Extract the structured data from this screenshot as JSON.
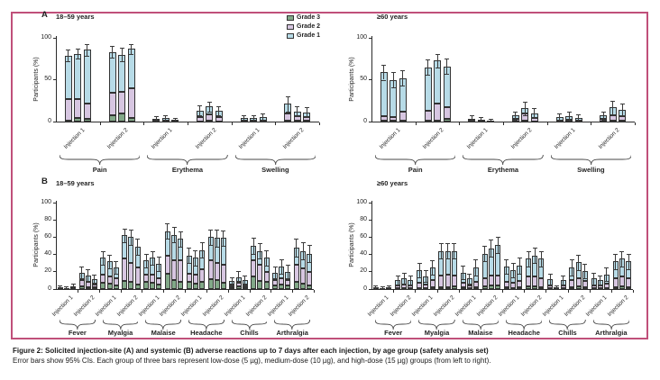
{
  "figure": {
    "caption_title": "Figure 2: Solicited injection-site (A) and systemic (B) adverse reactions up to 7 days after each injection, by age group (safety analysis set)",
    "caption_note": "Error bars show 95% CIs. Each group of three bars represent low-dose (5 µg), medium-dose (10 µg), and high-dose (15 µg) groups (from left to right).",
    "frame_color": "#c0507a",
    "dose_groups": [
      "low-dose (5 µg)",
      "medium-dose (10 µg)",
      "high-dose (15 µg)"
    ]
  },
  "legend": {
    "items": [
      {
        "key": "grade3",
        "label": "Grade 3",
        "color": "#82a988"
      },
      {
        "key": "grade2",
        "label": "Grade 2",
        "color": "#d7c6e1"
      },
      {
        "key": "grade1",
        "label": "Grade 1",
        "color": "#b7dbe7"
      }
    ]
  },
  "chart_data": [
    {
      "id": "injection-site-18-59",
      "panel_letter": "A",
      "age_group": "18–59 years",
      "type": "bar",
      "stacked": true,
      "ylabel": "Participants (%)",
      "ylim": [
        0,
        100
      ],
      "yticks": [
        0,
        50,
        100
      ],
      "grid": false,
      "bar_format": [
        "grade3_pct",
        "grade2_pct",
        "grade1_pct",
        "ci95_halfwidth_pct"
      ],
      "groups": [
        {
          "category": "Pain",
          "injection": "Injection 1",
          "bars": [
            [
              1,
              26,
              52,
              7
            ],
            [
              4,
              23,
              54,
              6
            ],
            [
              3,
              19,
              64,
              7
            ]
          ]
        },
        {
          "category": "Pain",
          "injection": "Injection 2",
          "bars": [
            [
              8,
              26,
              49,
              7
            ],
            [
              10,
              25,
              45,
              8
            ],
            [
              4,
              36,
              47,
              6
            ]
          ]
        },
        {
          "category": "Erythema",
          "injection": "Injection 1",
          "bars": [
            [
              0,
              1,
              2,
              3
            ],
            [
              0,
              1,
              3,
              4
            ],
            [
              0,
              1,
              1,
              2
            ]
          ]
        },
        {
          "category": "Erythema",
          "injection": "Injection 2",
          "bars": [
            [
              0,
              5,
              8,
              6
            ],
            [
              1,
              8,
              9,
              6
            ],
            [
              0,
              5,
              8,
              5
            ]
          ]
        },
        {
          "category": "Swelling",
          "injection": "Injection 1",
          "bars": [
            [
              0,
              1,
              3,
              4
            ],
            [
              0,
              1,
              3,
              4
            ],
            [
              0,
              1,
              4,
              5
            ]
          ]
        },
        {
          "category": "Swelling",
          "injection": "Injection 2",
          "bars": [
            [
              1,
              9,
              11,
              9
            ],
            [
              1,
              5,
              6,
              6
            ],
            [
              1,
              4,
              6,
              6
            ]
          ]
        }
      ]
    },
    {
      "id": "injection-site-60plus",
      "panel_letter": "",
      "age_group": "≥60 years",
      "type": "bar",
      "stacked": true,
      "ylabel": "Participants (%)",
      "ylim": [
        0,
        100
      ],
      "yticks": [
        0,
        50,
        100
      ],
      "grid": false,
      "bar_format": [
        "grade3_pct",
        "grade2_pct",
        "grade1_pct",
        "ci95_halfwidth_pct"
      ],
      "groups": [
        {
          "category": "Pain",
          "injection": "Injection 1",
          "bars": [
            [
              1,
              5,
              53,
              9
            ],
            [
              1,
              4,
              45,
              9
            ],
            [
              1,
              11,
              40,
              9
            ]
          ]
        },
        {
          "category": "Pain",
          "injection": "Injection 2",
          "bars": [
            [
              1,
              12,
              52,
              9
            ],
            [
              1,
              21,
              51,
              8
            ],
            [
              3,
              14,
              49,
              9
            ]
          ]
        },
        {
          "category": "Erythema",
          "injection": "Injection 1",
          "bars": [
            [
              0,
              1,
              2,
              4
            ],
            [
              0,
              1,
              1,
              3
            ],
            [
              0,
              0,
              1,
              2
            ]
          ]
        },
        {
          "category": "Erythema",
          "injection": "Injection 2",
          "bars": [
            [
              0,
              3,
              4,
              5
            ],
            [
              1,
              9,
              6,
              8
            ],
            [
              0,
              4,
              6,
              6
            ]
          ]
        },
        {
          "category": "Swelling",
          "injection": "Injection 1",
          "bars": [
            [
              0,
              1,
              4,
              5
            ],
            [
              0,
              2,
              4,
              6
            ],
            [
              0,
              1,
              3,
              5
            ]
          ]
        },
        {
          "category": "Swelling",
          "injection": "Injection 2",
          "bars": [
            [
              0,
              3,
              4,
              5
            ],
            [
              1,
              7,
              9,
              8
            ],
            [
              1,
              5,
              8,
              7
            ]
          ]
        }
      ]
    },
    {
      "id": "systemic-18-59",
      "panel_letter": "B",
      "age_group": "18–59 years",
      "type": "bar",
      "stacked": true,
      "ylabel": "Participants (%)",
      "ylim": [
        0,
        100
      ],
      "yticks": [
        0,
        20,
        40,
        60,
        80,
        100
      ],
      "grid": false,
      "bar_format": [
        "grade3_pct",
        "grade2_pct",
        "grade1_pct",
        "ci95_halfwidth_pct"
      ],
      "groups": [
        {
          "category": "Fever",
          "injection": "Injection 1",
          "bars": [
            [
              0,
              1,
              1,
              2
            ],
            [
              0,
              0,
              1,
              2
            ],
            [
              0,
              1,
              2,
              3
            ]
          ]
        },
        {
          "category": "Fever",
          "injection": "Injection 2",
          "bars": [
            [
              3,
              7,
              9,
              7
            ],
            [
              2,
              6,
              8,
              7
            ],
            [
              2,
              4,
              5,
              6
            ]
          ]
        },
        {
          "category": "Myalgia",
          "injection": "Injection 1",
          "bars": [
            [
              7,
              10,
              19,
              8
            ],
            [
              6,
              9,
              17,
              8
            ],
            [
              4,
              8,
              13,
              7
            ]
          ]
        },
        {
          "category": "Myalgia",
          "injection": "Injection 2",
          "bars": [
            [
              9,
              26,
              27,
              8
            ],
            [
              8,
              22,
              30,
              9
            ],
            [
              5,
              20,
              24,
              9
            ]
          ]
        },
        {
          "category": "Malaise",
          "injection": "Injection 1",
          "bars": [
            [
              8,
              9,
              16,
              8
            ],
            [
              7,
              10,
              19,
              8
            ],
            [
              5,
              8,
              16,
              8
            ]
          ]
        },
        {
          "category": "Malaise",
          "injection": "Injection 2",
          "bars": [
            [
              18,
              21,
              28,
              9
            ],
            [
              10,
              23,
              30,
              9
            ],
            [
              8,
              25,
              25,
              9
            ]
          ]
        },
        {
          "category": "Headache",
          "injection": "Injection 1",
          "bars": [
            [
              8,
              10,
              21,
              9
            ],
            [
              6,
              11,
              19,
              9
            ],
            [
              8,
              15,
              22,
              9
            ]
          ]
        },
        {
          "category": "Headache",
          "injection": "Injection 2",
          "bars": [
            [
              11,
              22,
              27,
              9
            ],
            [
              10,
              20,
              29,
              10
            ],
            [
              7,
              21,
              31,
              9
            ]
          ]
        },
        {
          "category": "Chills",
          "injection": "Injection 1",
          "bars": [
            [
              2,
              3,
              4,
              5
            ],
            [
              3,
              5,
              6,
              7
            ],
            [
              2,
              3,
              5,
              6
            ]
          ]
        },
        {
          "category": "Chills",
          "injection": "Injection 2",
          "bars": [
            [
              15,
              18,
              17,
              9
            ],
            [
              9,
              19,
              16,
              9
            ],
            [
              8,
              12,
              16,
              9
            ]
          ]
        },
        {
          "category": "Arthralgia",
          "injection": "Injection 1",
          "bars": [
            [
              4,
              6,
              9,
              7
            ],
            [
              5,
              8,
              13,
              8
            ],
            [
              4,
              6,
              10,
              8
            ]
          ]
        },
        {
          "category": "Arthralgia",
          "injection": "Injection 2",
          "bars": [
            [
              8,
              20,
              20,
              10
            ],
            [
              6,
              18,
              20,
              10
            ],
            [
              4,
              16,
              21,
              10
            ]
          ]
        }
      ]
    },
    {
      "id": "systemic-60plus",
      "panel_letter": "",
      "age_group": "≥60 years",
      "type": "bar",
      "stacked": true,
      "ylabel": "Participants (%)",
      "ylim": [
        0,
        100
      ],
      "yticks": [
        0,
        20,
        40,
        60,
        80,
        100
      ],
      "grid": false,
      "bar_format": [
        "grade3_pct",
        "grade2_pct",
        "grade1_pct",
        "ci95_halfwidth_pct"
      ],
      "groups": [
        {
          "category": "Fever",
          "injection": "Injection 1",
          "bars": [
            [
              0,
              1,
              1,
              2
            ],
            [
              0,
              0,
              1,
              2
            ],
            [
              0,
              1,
              1,
              2
            ]
          ]
        },
        {
          "category": "Fever",
          "injection": "Injection 2",
          "bars": [
            [
              1,
              3,
              6,
              6
            ],
            [
              1,
              4,
              7,
              7
            ],
            [
              1,
              3,
              6,
              6
            ]
          ]
        },
        {
          "category": "Myalgia",
          "injection": "Injection 1",
          "bars": [
            [
              1,
              6,
              15,
              8
            ],
            [
              1,
              4,
              10,
              7
            ],
            [
              2,
              8,
              15,
              8
            ]
          ]
        },
        {
          "category": "Myalgia",
          "injection": "Injection 2",
          "bars": [
            [
              2,
              14,
              28,
              9
            ],
            [
              2,
              15,
              27,
              9
            ],
            [
              3,
              13,
              28,
              9
            ]
          ]
        },
        {
          "category": "Malaise",
          "injection": "Injection 1",
          "bars": [
            [
              2,
              5,
              12,
              8
            ],
            [
              1,
              3,
              8,
              6
            ],
            [
              2,
              6,
              17,
              9
            ]
          ]
        },
        {
          "category": "Malaise",
          "injection": "Injection 2",
          "bars": [
            [
              3,
              10,
              28,
              9
            ],
            [
              4,
              12,
              31,
              10
            ],
            [
              4,
              12,
              35,
              9
            ]
          ]
        },
        {
          "category": "Headache",
          "injection": "Injection 1",
          "bars": [
            [
              2,
              6,
              18,
              8
            ],
            [
              1,
              6,
              15,
              8
            ],
            [
              2,
              7,
              18,
              9
            ]
          ]
        },
        {
          "category": "Headache",
          "injection": "Injection 2",
          "bars": [
            [
              3,
              12,
              20,
              9
            ],
            [
              3,
              12,
              24,
              9
            ],
            [
              2,
              11,
              22,
              9
            ]
          ]
        },
        {
          "category": "Chills",
          "injection": "Injection 1",
          "bars": [
            [
              1,
              3,
              7,
              7
            ],
            [
              0,
              1,
              1,
              2
            ],
            [
              1,
              3,
              6,
              6
            ]
          ]
        },
        {
          "category": "Chills",
          "injection": "Injection 2",
          "bars": [
            [
              2,
              8,
              15,
              9
            ],
            [
              3,
              10,
              18,
              9
            ],
            [
              2,
              7,
              12,
              8
            ]
          ]
        },
        {
          "category": "Arthralgia",
          "injection": "Injection 1",
          "bars": [
            [
              1,
              3,
              8,
              7
            ],
            [
              1,
              3,
              6,
              6
            ],
            [
              1,
              5,
              11,
              8
            ]
          ]
        },
        {
          "category": "Arthralgia",
          "injection": "Injection 2",
          "bars": [
            [
              2,
              11,
              19,
              9
            ],
            [
              3,
              12,
              20,
              9
            ],
            [
              2,
              10,
              20,
              9
            ]
          ]
        }
      ]
    }
  ]
}
